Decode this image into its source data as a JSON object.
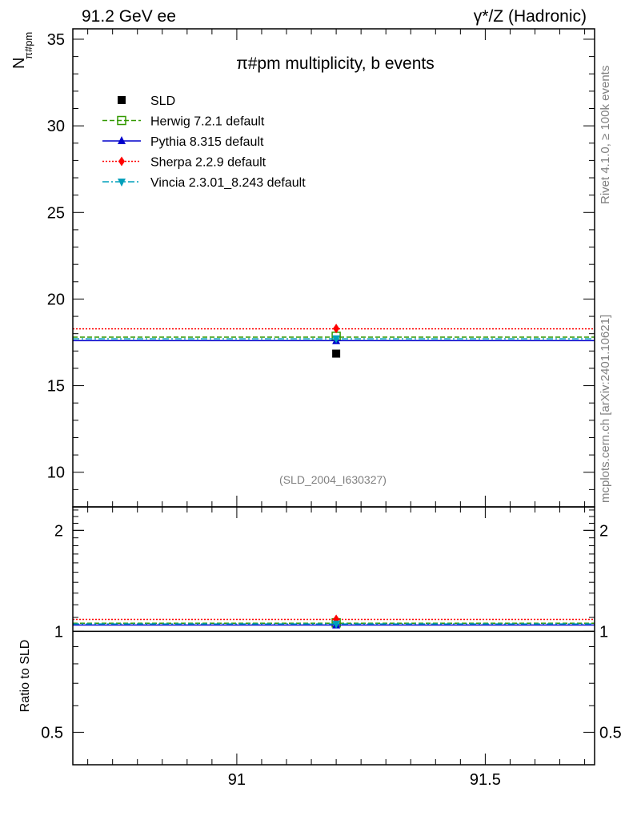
{
  "header": {
    "left": "91.2 GeV ee",
    "right": "γ*/Z (Hadronic)"
  },
  "side_texts": {
    "rivet": "Rivet 4.1.0, ≥ 100k events",
    "mcplots": "mcplots.cern.ch [arXiv:2401.10621]"
  },
  "colors": {
    "SLD": "#000000",
    "Herwig": "#339900",
    "Pythia": "#0000cc",
    "Sherpa": "#ff0000",
    "Vincia": "#00a0bb"
  },
  "chart_data": [
    {
      "type": "scatter",
      "title": "π#pm multiplicity, b events",
      "ylabel_main": "N",
      "ylabel_sub": "π#pm",
      "xlabel": "",
      "reference": "(SLD_2004_I630327)",
      "xlim": [
        90.67,
        91.72
      ],
      "ylim": [
        8.0,
        35.6
      ],
      "x_ticks": [
        91,
        91.5
      ],
      "x_tick_labels": [
        "91",
        "91.5"
      ],
      "y_ticks": [
        10,
        15,
        20,
        25,
        30,
        35
      ],
      "y_tick_labels": [
        "10",
        "15",
        "20",
        "25",
        "30",
        "35"
      ],
      "series": [
        {
          "name": "SLD",
          "label": "SLD",
          "style": "data",
          "marker": "square",
          "x": 91.2,
          "y": 16.85,
          "yerr": 0.2
        },
        {
          "name": "Herwig",
          "label": "Herwig 7.2.1 default",
          "style": "dashed",
          "marker": "open-square",
          "x": 91.2,
          "y": 17.85,
          "line_y": 17.8
        },
        {
          "name": "Pythia",
          "label": "Pythia 8.315 default",
          "style": "solid",
          "marker": "triangle-up",
          "x": 91.2,
          "y": 17.58,
          "line_y": 17.6
        },
        {
          "name": "Sherpa",
          "label": "Sherpa 2.2.9 default",
          "style": "dotted",
          "marker": "diamond",
          "x": 91.2,
          "y": 18.3,
          "line_y": 18.28
        },
        {
          "name": "Vincia",
          "label": "Vincia 2.3.01_8.243 default",
          "style": "dashdot",
          "marker": "triangle-down",
          "x": 91.2,
          "y": 17.72,
          "line_y": 17.7
        }
      ]
    },
    {
      "type": "scatter",
      "ylabel": "Ratio to SLD",
      "xlim": [
        90.67,
        91.72
      ],
      "ylim": [
        0.4,
        2.35
      ],
      "y_scale": "log",
      "y_ticks": [
        0.5,
        1,
        2
      ],
      "y_tick_labels": [
        "0.5",
        "1",
        "2"
      ],
      "series": [
        {
          "name": "Herwig",
          "style": "dashed",
          "marker": "open-square",
          "x": 91.2,
          "y": 1.06,
          "line_y": 1.057
        },
        {
          "name": "Pythia",
          "style": "solid",
          "marker": "triangle-up",
          "x": 91.2,
          "y": 1.043,
          "line_y": 1.044
        },
        {
          "name": "Sherpa",
          "style": "dotted",
          "marker": "diamond",
          "x": 91.2,
          "y": 1.086,
          "line_y": 1.085
        },
        {
          "name": "Vincia",
          "style": "dashdot",
          "marker": "triangle-down",
          "x": 91.2,
          "y": 1.052,
          "line_y": 1.052
        }
      ]
    }
  ]
}
